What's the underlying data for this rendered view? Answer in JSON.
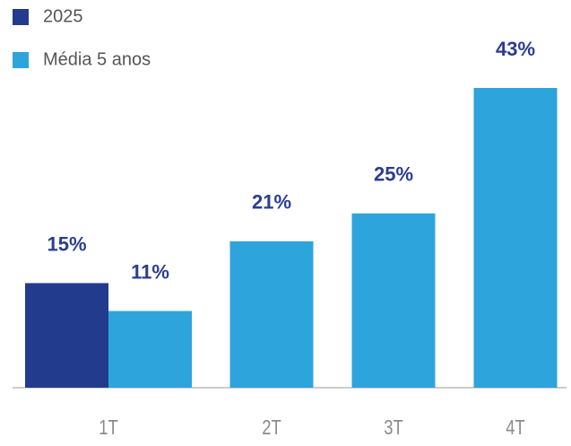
{
  "chart_data": {
    "type": "bar",
    "categories": [
      "1T",
      "2T",
      "3T",
      "4T"
    ],
    "series": [
      {
        "name": "2025",
        "color": "#233b8c",
        "values": [
          15,
          null,
          null,
          null
        ],
        "value_labels": [
          "15%",
          null,
          null,
          null
        ]
      },
      {
        "name": "Média 5 anos",
        "color": "#2ea4dd",
        "values": [
          11,
          21,
          25,
          43
        ],
        "value_labels": [
          "11%",
          "21%",
          "25%",
          "43%"
        ]
      }
    ],
    "ylim": [
      0,
      43
    ]
  }
}
